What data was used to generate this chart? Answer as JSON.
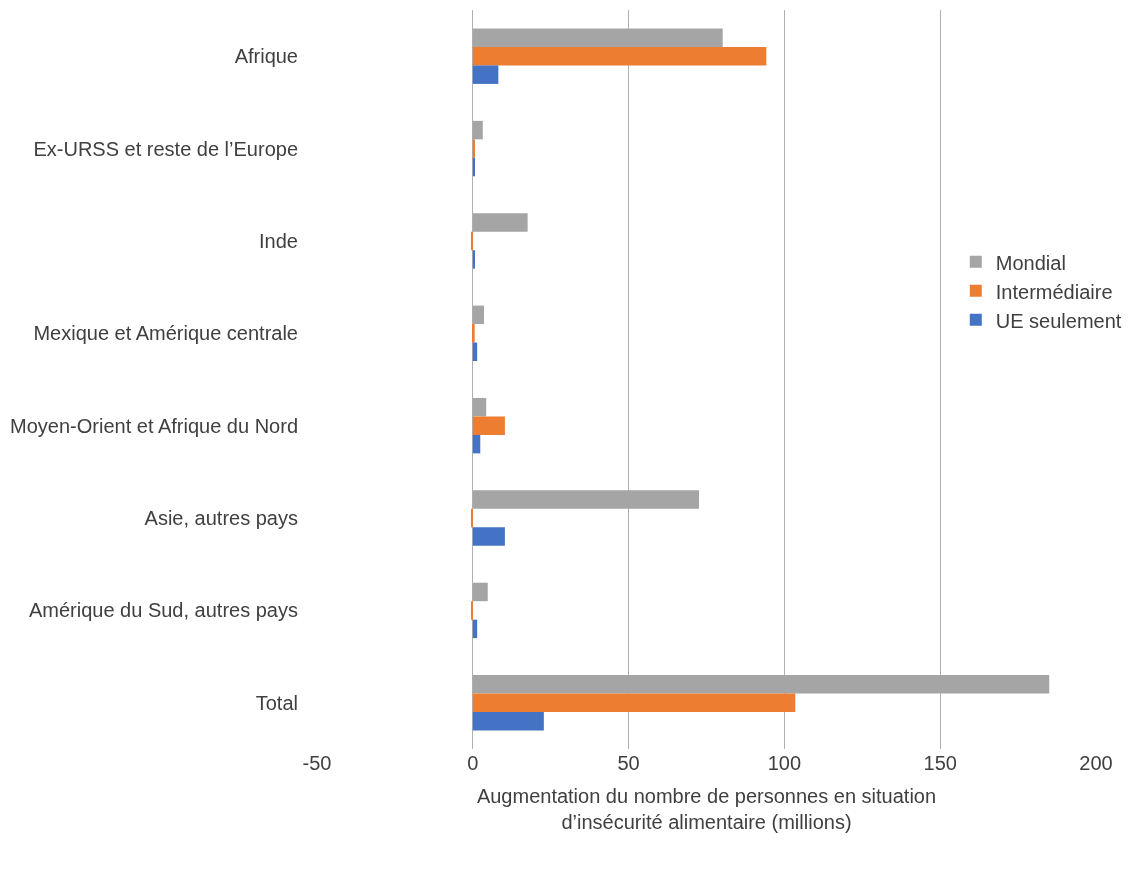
{
  "chart_data": {
    "type": "bar",
    "orientation": "horizontal",
    "categories": [
      "Afrique",
      "Ex-URSS et reste de l’Europe",
      "Inde",
      "Mexique et Amérique centrale",
      "Moyen-Orient et Afrique du Nord",
      "Asie, autres pays",
      "Amérique du Sud, autres pays",
      "Total"
    ],
    "series": [
      {
        "name": "Mondial",
        "color": "#a5a5a5",
        "values": [
          80.2,
          3.2,
          17.6,
          3.6,
          4.3,
          72.6,
          4.8,
          185
        ]
      },
      {
        "name": "Intermédiaire",
        "color": "#ed7d31",
        "values": [
          94.2,
          0.7,
          -0.3,
          0.6,
          10.3,
          -0.3,
          -0.3,
          103.5
        ]
      },
      {
        "name": "UE seulement",
        "color": "#4472c4",
        "values": [
          8.2,
          0.7,
          0.7,
          1.4,
          2.4,
          10.3,
          1.4,
          22.8
        ]
      }
    ],
    "xlabel": "Augmentation du nombre de personnes en situation d’insécurité alimentaire (millions)",
    "xlim": [
      -50,
      200
    ],
    "xticks": [
      -50,
      0,
      50,
      100,
      150,
      200
    ],
    "grid": "x",
    "legend": "right"
  }
}
